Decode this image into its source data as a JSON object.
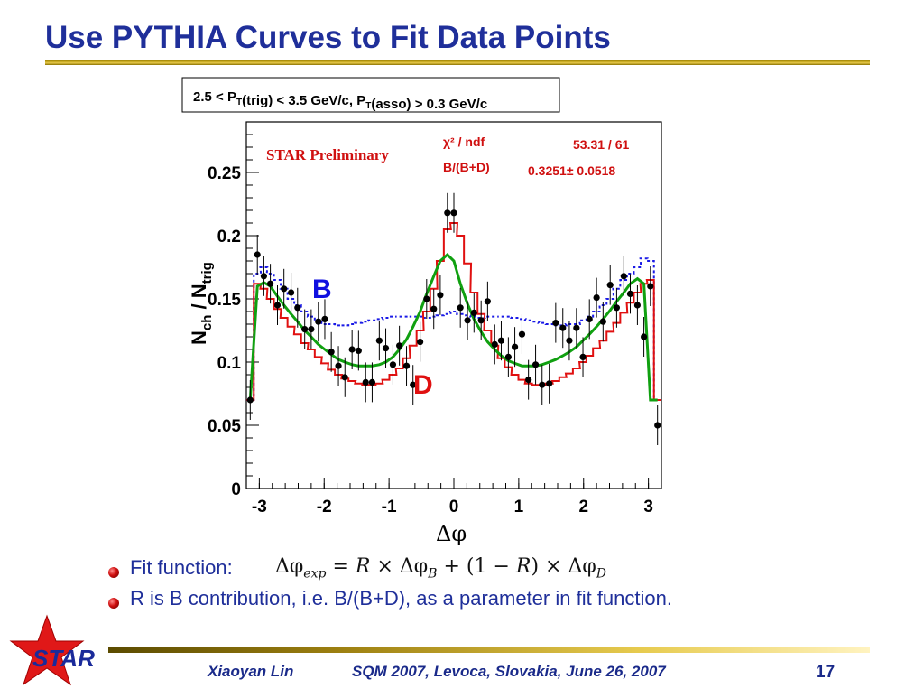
{
  "slide": {
    "title": "Use PYTHIA Curves to Fit Data Points",
    "bullets": [
      {
        "prefix": "Fit function:"
      },
      {
        "text": "R is B contribution, i.e. B/(B+D), as a parameter in fit function."
      }
    ],
    "formula": {
      "lhs": "Δφ",
      "lhs_sub": "exp",
      "rhs_r": "R",
      "rhs_b_sub": "B",
      "rhs_d_sub": "D"
    },
    "footer": {
      "author": "Xiaoyan Lin",
      "conference": "SQM 2007, Levoca, Slovakia, June 26, 2007",
      "page": "17",
      "logo_text": "STAR"
    }
  },
  "chart_data": {
    "type": "line",
    "header_box": "2.5 < P_T(trig) < 3.5 GeV/c, P_T(asso) > 0.3 GeV/c",
    "watermark": "STAR Preliminary",
    "stats": {
      "chi2_label": "χ² / ndf",
      "chi2_value": "53.31 / 61",
      "param_label": "B/(B+D)",
      "param_value": "0.3251± 0.0518"
    },
    "xlabel": "Δφ",
    "ylabel": "N_ch / N_trig",
    "xlim": [
      -3.2,
      3.2
    ],
    "ylim": [
      0,
      0.29
    ],
    "xticks": [
      "-3",
      "-2",
      "-1",
      "0",
      "1",
      "2",
      "3"
    ],
    "yticks": [
      "0",
      "0.05",
      "0.1",
      "0.15",
      "0.2",
      "0.25"
    ],
    "annotations": [
      {
        "text": "B",
        "color": "#1010e0"
      },
      {
        "text": "D",
        "color": "#e01010"
      }
    ],
    "colors": {
      "B": "#1a1ae6",
      "D": "#e01010",
      "fit": "#10a010",
      "data": "#000000"
    },
    "x": [
      -3.14,
      -3.03,
      -2.93,
      -2.83,
      -2.72,
      -2.62,
      -2.51,
      -2.41,
      -2.3,
      -2.2,
      -2.09,
      -1.99,
      -1.89,
      -1.78,
      -1.68,
      -1.57,
      -1.47,
      -1.36,
      -1.26,
      -1.15,
      -1.05,
      -0.94,
      -0.84,
      -0.73,
      -0.63,
      -0.52,
      -0.42,
      -0.31,
      -0.21,
      -0.1,
      0.0,
      0.1,
      0.21,
      0.31,
      0.42,
      0.52,
      0.63,
      0.73,
      0.84,
      0.94,
      1.05,
      1.15,
      1.26,
      1.36,
      1.47,
      1.57,
      1.68,
      1.78,
      1.89,
      1.99,
      2.09,
      2.2,
      2.3,
      2.41,
      2.51,
      2.62,
      2.72,
      2.83,
      2.93,
      3.03,
      3.14
    ],
    "series": [
      {
        "name": "B",
        "style": "dotted-step",
        "values": [
          0.07,
          0.17,
          0.175,
          0.17,
          0.165,
          0.158,
          0.15,
          0.145,
          0.14,
          0.136,
          0.133,
          0.13,
          0.13,
          0.129,
          0.129,
          0.13,
          0.131,
          0.132,
          0.133,
          0.134,
          0.135,
          0.136,
          0.136,
          0.136,
          0.136,
          0.136,
          0.135,
          0.136,
          0.137,
          0.138,
          0.14,
          0.138,
          0.137,
          0.136,
          0.135,
          0.136,
          0.136,
          0.136,
          0.136,
          0.135,
          0.134,
          0.133,
          0.132,
          0.131,
          0.13,
          0.129,
          0.129,
          0.13,
          0.13,
          0.133,
          0.136,
          0.14,
          0.145,
          0.15,
          0.158,
          0.165,
          0.17,
          0.175,
          0.182,
          0.18,
          0.07
        ]
      },
      {
        "name": "D",
        "style": "solid-step",
        "values": [
          0.07,
          0.162,
          0.158,
          0.15,
          0.142,
          0.135,
          0.128,
          0.122,
          0.115,
          0.11,
          0.104,
          0.099,
          0.094,
          0.09,
          0.087,
          0.085,
          0.083,
          0.082,
          0.082,
          0.083,
          0.086,
          0.09,
          0.095,
          0.103,
          0.113,
          0.125,
          0.14,
          0.158,
          0.18,
          0.205,
          0.21,
          0.2,
          0.178,
          0.155,
          0.138,
          0.125,
          0.113,
          0.103,
          0.096,
          0.09,
          0.086,
          0.083,
          0.082,
          0.082,
          0.083,
          0.085,
          0.088,
          0.091,
          0.095,
          0.1,
          0.105,
          0.111,
          0.117,
          0.124,
          0.131,
          0.139,
          0.147,
          0.155,
          0.162,
          0.165,
          0.07
        ]
      },
      {
        "name": "fit",
        "style": "smooth",
        "values": [
          0.07,
          0.16,
          0.163,
          0.16,
          0.152,
          0.145,
          0.138,
          0.132,
          0.125,
          0.12,
          0.114,
          0.11,
          0.106,
          0.102,
          0.1,
          0.098,
          0.097,
          0.097,
          0.097,
          0.098,
          0.1,
          0.104,
          0.11,
          0.118,
          0.128,
          0.14,
          0.154,
          0.168,
          0.18,
          0.185,
          0.18,
          0.162,
          0.146,
          0.134,
          0.124,
          0.116,
          0.11,
          0.105,
          0.101,
          0.099,
          0.097,
          0.097,
          0.097,
          0.098,
          0.1,
          0.102,
          0.105,
          0.108,
          0.112,
          0.117,
          0.122,
          0.128,
          0.134,
          0.141,
          0.148,
          0.155,
          0.162,
          0.166,
          0.162,
          0.07,
          0.07
        ]
      },
      {
        "name": "data",
        "style": "points",
        "values": [
          0.07,
          0.185,
          0.168,
          0.162,
          0.145,
          0.158,
          0.155,
          0.143,
          0.126,
          0.126,
          0.132,
          0.134,
          0.108,
          0.097,
          0.088,
          0.11,
          0.109,
          0.084,
          0.084,
          0.117,
          0.111,
          0.098,
          0.113,
          0.097,
          0.082,
          0.116,
          0.15,
          0.142,
          0.153,
          0.218,
          0.218,
          0.143,
          0.133,
          0.139,
          0.133,
          0.148,
          0.114,
          0.117,
          0.104,
          0.112,
          0.122,
          0.086,
          0.098,
          0.082,
          0.083,
          0.131,
          0.127,
          0.117,
          0.127,
          0.104,
          0.134,
          0.151,
          0.132,
          0.161,
          0.143,
          0.168,
          0.154,
          0.145,
          0.12,
          0.16,
          0.05
        ]
      }
    ]
  }
}
